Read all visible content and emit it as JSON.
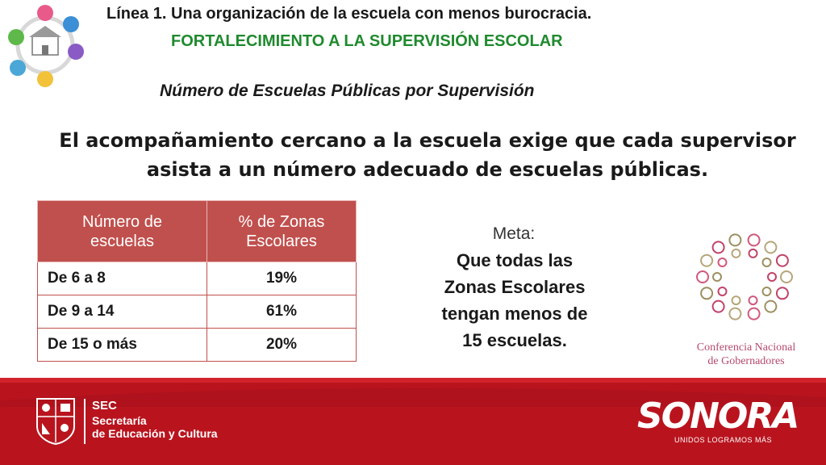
{
  "header": {
    "line_title": "Línea 1. Una organización de la escuela con menos burocracia.",
    "subtitle": "FORTALECIMIENTO A LA SUPERVISIÓN ESCOLAR",
    "section_title": "Número de Escuelas Públicas por Supervisión"
  },
  "intro": {
    "line1": "El acompañamiento cercano a la escuela exige que cada supervisor",
    "line2": "asista a un número adecuado de escuelas públicas."
  },
  "table": {
    "headers": [
      {
        "line1": "Número de",
        "line2": "escuelas"
      },
      {
        "line1": "% de Zonas",
        "line2": "Escolares"
      }
    ],
    "rows": [
      {
        "range": "De 6 a 8",
        "percent": "19%"
      },
      {
        "range": "De 9 a 14",
        "percent": "61%"
      },
      {
        "range": "De 15 o más",
        "percent": "20%"
      }
    ]
  },
  "goal": {
    "label": "Meta:",
    "lines": [
      "Que todas las",
      "Zonas Escolares",
      "tengan menos de",
      "15 escuelas."
    ]
  },
  "conago": {
    "line1": "Conferencia Nacional",
    "line2": "de Gobernadores"
  },
  "footer": {
    "sec_abbr": "SEC",
    "sec_line1": "Secretaría",
    "sec_line2": "de Educación y Cultura",
    "brand": "SONORA",
    "tagline": "UNIDOS LOGRAMOS MÁS"
  },
  "colors": {
    "header_red": "#c0504d",
    "subtitle_green": "#1f8a2e",
    "footer_red": "#b9141e"
  }
}
